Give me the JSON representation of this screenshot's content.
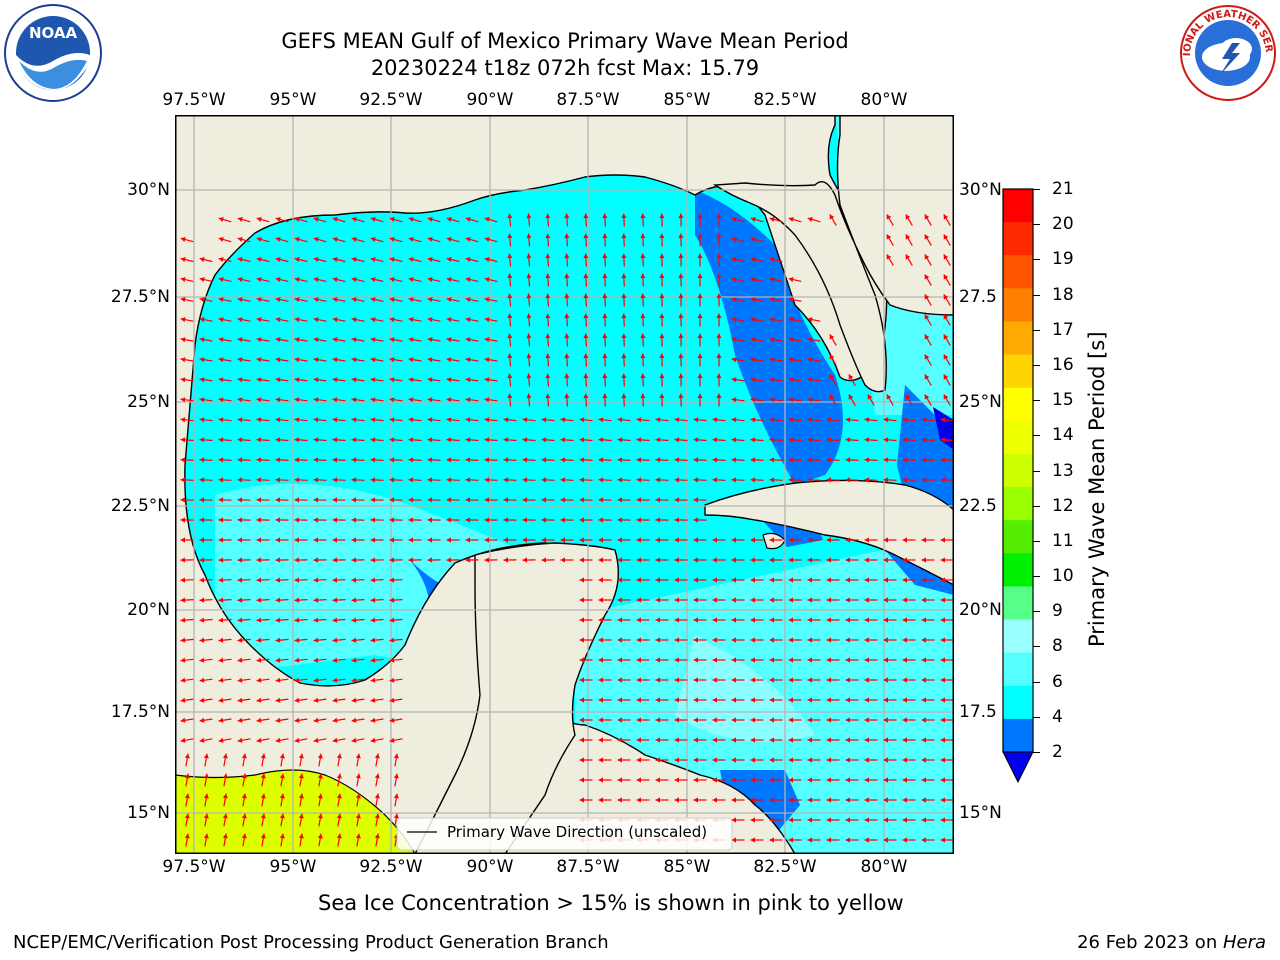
{
  "title": {
    "line1": "GEFS MEAN Gulf of Mexico Primary Wave Mean Period",
    "line2": "20230224 t18z 072h fcst   Max: 15.79"
  },
  "axes": {
    "lon_ticks": [
      "97.5°W",
      "95°W",
      "92.5°W",
      "90°W",
      "87.5°W",
      "85°W",
      "82.5°W",
      "80°W"
    ],
    "lat_ticks_left": [
      "30°N",
      "27.5°N",
      "25°N",
      "22.5°N",
      "20°N",
      "17.5°N",
      "15°N"
    ],
    "lat_ticks_right": [
      "30°N",
      "27.5",
      "25°N",
      "22.5",
      "20°N",
      "17.5",
      "15°N"
    ]
  },
  "legend": {
    "label": "Primary Wave Direction (unscaled)"
  },
  "colorbar": {
    "label": "Primary Wave Mean Period [s]",
    "ticks": [
      "21",
      "20",
      "19",
      "18",
      "17",
      "16",
      "15",
      "14",
      "13",
      "12",
      "11",
      "10",
      "9",
      "8",
      "6",
      "4",
      "2"
    ],
    "colors": [
      "#ff0000",
      "#ff2a00",
      "#ff5500",
      "#ff8000",
      "#ffaa00",
      "#ffd400",
      "#ffff00",
      "#eeff00",
      "#ccff00",
      "#99ff00",
      "#55ee00",
      "#00ee00",
      "#55ff88",
      "#99ffff",
      "#55ffff",
      "#00ffff",
      "#0077ff"
    ],
    "extend_color": "#0000ee"
  },
  "chart_data": {
    "type": "heatmap",
    "title": "GEFS MEAN Gulf of Mexico Primary Wave Mean Period",
    "subtitle": "20230224 t18z 072h fcst   Max: 15.79",
    "variable": "Primary Wave Mean Period [s]",
    "max": 15.79,
    "lon_ticks": [
      -97.5,
      -95,
      -92.5,
      -90,
      -87.5,
      -85,
      -82.5,
      -80
    ],
    "lat_ticks": [
      30,
      27.5,
      25,
      22.5,
      20,
      17.5,
      15
    ],
    "lon_range": [
      -98,
      -78.2
    ],
    "lat_range": [
      14,
      31.8
    ],
    "colorbar_levels": [
      2,
      4,
      6,
      8,
      9,
      10,
      11,
      12,
      13,
      14,
      15,
      16,
      17,
      18,
      19,
      20,
      21
    ],
    "grid": true,
    "vector_field": "Primary Wave Direction (unscaled)",
    "colors": {
      "land": "#efedde",
      "coast": "#000000",
      "arrows": "#ff0000",
      "grid": "#b4b4b4"
    }
  },
  "notes": {
    "sea_ice": "Sea Ice Concentration > 15% is shown in pink to yellow",
    "producer": "NCEP/EMC/Verification Post Processing Product Generation Branch",
    "date": "26 Feb 2023 on ",
    "machine": "Hera"
  },
  "logos": {
    "left": "NOAA",
    "right": "NATIONAL WEATHER SERVICE"
  }
}
